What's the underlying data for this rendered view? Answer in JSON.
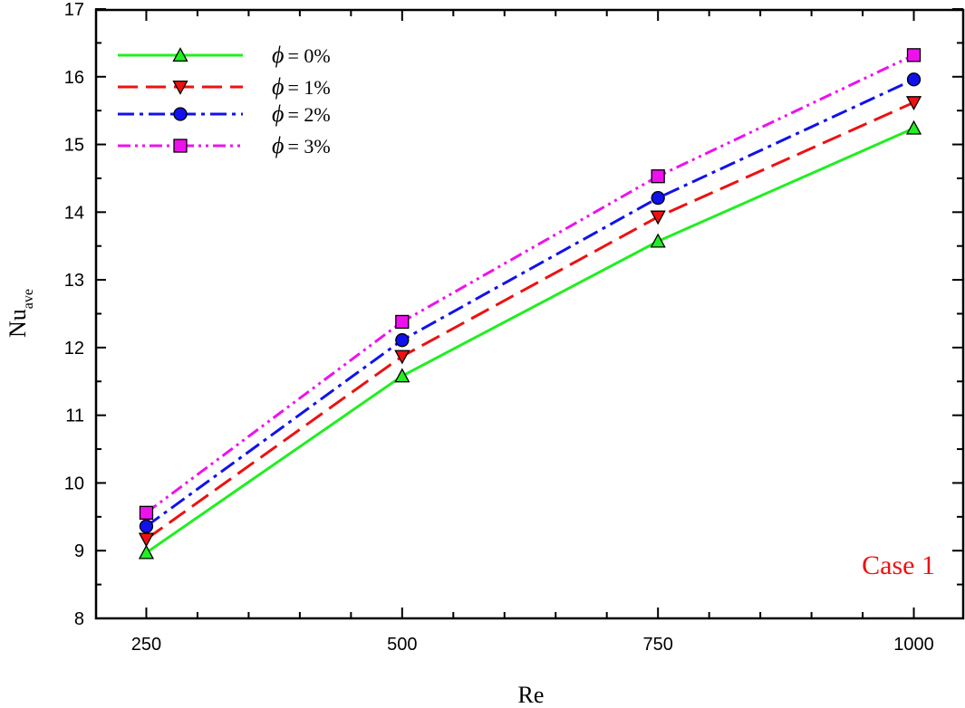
{
  "chart_data": {
    "type": "line",
    "x": [
      250,
      500,
      750,
      1000
    ],
    "xlabel": "Re",
    "ylabel_main": "Nu",
    "ylabel_sub": "ave",
    "xlim": [
      200,
      1050
    ],
    "ylim": [
      8,
      17
    ],
    "x_ticks": [
      "250",
      "500",
      "750",
      "1000"
    ],
    "y_ticks": [
      "8",
      "9",
      "10",
      "11",
      "12",
      "13",
      "14",
      "15",
      "16",
      "17"
    ],
    "grid": false,
    "legend_placement": "top-left",
    "series": [
      {
        "name": "ϕ = 0%",
        "phi_symbol": "ϕ",
        "eq_text": "= 0%",
        "values": [
          8.97,
          11.58,
          13.57,
          15.24
        ],
        "color": "#22ee22",
        "dash": "solid",
        "marker": "triangle-up"
      },
      {
        "name": "ϕ = 1%",
        "phi_symbol": "ϕ",
        "eq_text": "= 1%",
        "values": [
          9.17,
          11.87,
          13.93,
          15.62
        ],
        "color": "#ee1111",
        "dash": "dash",
        "marker": "triangle-down"
      },
      {
        "name": "ϕ = 2%",
        "phi_symbol": "ϕ",
        "eq_text": "= 2%",
        "values": [
          9.36,
          12.11,
          14.21,
          15.96
        ],
        "color": "#1111ee",
        "dash": "dashdot",
        "marker": "circle"
      },
      {
        "name": "ϕ = 3%",
        "phi_symbol": "ϕ",
        "eq_text": "= 3%",
        "values": [
          9.56,
          12.38,
          14.53,
          16.32
        ],
        "color": "#ee11ee",
        "dash": "dashdotdot",
        "marker": "square"
      }
    ],
    "annotation": {
      "text": "Case 1",
      "color": "#ee1111",
      "placement": "bottom-right"
    }
  }
}
